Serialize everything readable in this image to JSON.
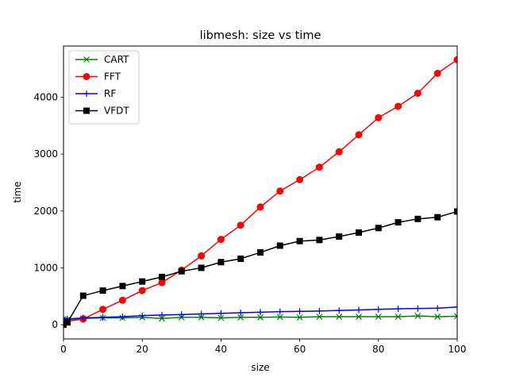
{
  "chart_data": {
    "type": "line",
    "title": "libmesh: size vs time",
    "xlabel": "size",
    "ylabel": "time",
    "xlim": [
      0,
      100
    ],
    "ylim": [
      -250,
      4900
    ],
    "xticks": [
      0,
      20,
      40,
      60,
      80,
      100
    ],
    "yticks": [
      0,
      1000,
      2000,
      3000,
      4000
    ],
    "grid": false,
    "legend_position": "top-left",
    "x": [
      0,
      1,
      5,
      10,
      15,
      20,
      25,
      30,
      35,
      40,
      45,
      50,
      55,
      60,
      65,
      70,
      75,
      80,
      85,
      90,
      95,
      100
    ],
    "series": [
      {
        "name": "CART",
        "color": "#008000",
        "marker": "x",
        "values": [
          100,
          90,
          110,
          120,
          120,
          130,
          110,
          130,
          130,
          120,
          130,
          130,
          135,
          130,
          140,
          140,
          140,
          140,
          140,
          155,
          140,
          150
        ]
      },
      {
        "name": "FFT",
        "color": "#ff0000",
        "marker": "circle",
        "values": [
          20,
          60,
          100,
          270,
          430,
          600,
          740,
          960,
          1210,
          1500,
          1750,
          2070,
          2350,
          2550,
          2770,
          3040,
          3340,
          3640,
          3840,
          4070,
          4420,
          4660
        ]
      },
      {
        "name": "RF",
        "color": "#0000ff",
        "marker": "plus",
        "values": [
          110,
          100,
          120,
          130,
          140,
          160,
          170,
          180,
          190,
          200,
          210,
          220,
          230,
          235,
          240,
          250,
          260,
          270,
          280,
          285,
          290,
          310
        ]
      },
      {
        "name": "VFDT",
        "color": "#000000",
        "marker": "square",
        "values": [
          0,
          40,
          510,
          600,
          680,
          760,
          840,
          940,
          1000,
          1100,
          1160,
          1270,
          1390,
          1470,
          1490,
          1550,
          1620,
          1700,
          1800,
          1860,
          1890,
          1990
        ]
      }
    ]
  }
}
